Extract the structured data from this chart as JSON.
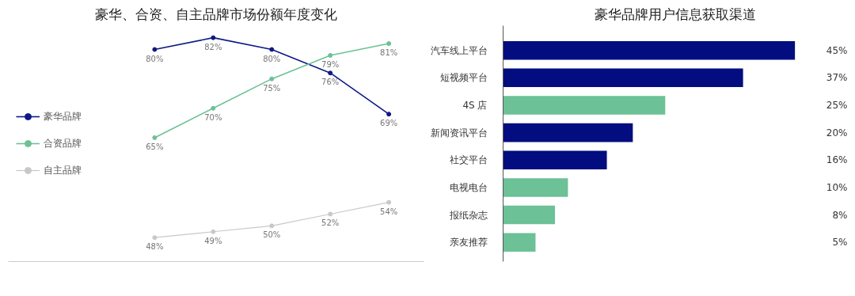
{
  "chart_data": [
    {
      "type": "line",
      "title": "豪华、合资、自主品牌市场份额年度变化",
      "categories": [
        null,
        null,
        null,
        null,
        null
      ],
      "marker": "circle",
      "line_style": "solid",
      "legend": "left",
      "grid": false,
      "tick_labels": false,
      "series": [
        {
          "name": "豪华品牌",
          "color": "#0d1a85",
          "values": [
            80,
            82,
            80,
            76,
            69
          ],
          "value_labels": [
            "80%",
            "82%",
            "80%",
            "76%",
            "69%"
          ]
        },
        {
          "name": "合资品牌",
          "color": "#6cc196",
          "values": [
            65,
            70,
            75,
            79,
            81
          ],
          "value_labels": [
            "65%",
            "70%",
            "75%",
            "79%",
            "81%"
          ]
        },
        {
          "name": "自主品牌",
          "color": "#c8c8c8",
          "values": [
            48,
            49,
            50,
            52,
            54
          ],
          "value_labels": [
            "48%",
            "49%",
            "50%",
            "52%",
            "54%"
          ]
        }
      ]
    },
    {
      "type": "bar",
      "orientation": "horizontal",
      "title": "豪华品牌用户信息获取渠道",
      "categories": [
        "汽车线上平台",
        "短视频平台",
        "4S 店",
        "新闻资讯平台",
        "社交平台",
        "电视电台",
        "报纸杂志",
        "亲友推荐"
      ],
      "grid": false,
      "tick_labels": "y",
      "values": [
        45,
        37,
        25,
        20,
        16,
        10,
        8,
        5
      ],
      "colors": [
        "#030d80",
        "#030d80",
        "#6cc196",
        "#030d80",
        "#030d80",
        "#6cc196",
        "#6cc196",
        "#6cc196"
      ],
      "value_labels": [
        "45%",
        "37%",
        "25%",
        "20%",
        "16%",
        "10%",
        "8%",
        "5%"
      ]
    }
  ]
}
